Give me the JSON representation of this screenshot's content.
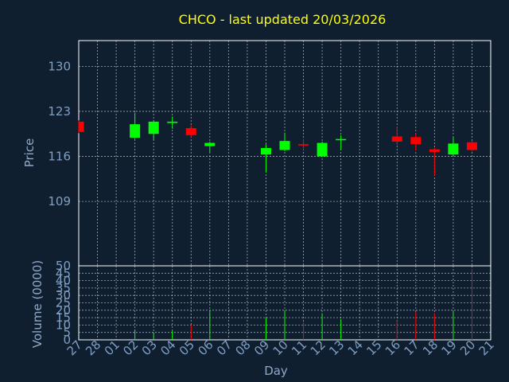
{
  "chart_data": [
    {
      "type": "candlestick",
      "title": "CHCO - last updated 20/03/2026",
      "ylabel": "Price",
      "ylim": [
        99,
        134
      ],
      "yticks": [
        109,
        116,
        123,
        130
      ],
      "grid": true,
      "categories": [
        "27",
        "28",
        "01",
        "02",
        "03",
        "04",
        "05",
        "06",
        "07",
        "08",
        "09",
        "10",
        "11",
        "12",
        "13",
        "14",
        "15",
        "16",
        "17",
        "18",
        "19",
        "20",
        "21"
      ],
      "candles": [
        {
          "day": "27",
          "open": 121.4,
          "close": 119.8,
          "high": 121.6,
          "low": 119.6
        },
        {
          "day": "02",
          "open": 118.9,
          "close": 121.0,
          "high": 122.8,
          "low": 118.7
        },
        {
          "day": "03",
          "open": 119.5,
          "close": 121.4,
          "high": 121.6,
          "low": 118.5
        },
        {
          "day": "04",
          "open": 121.2,
          "close": 121.4,
          "high": 122.2,
          "low": 120.3
        },
        {
          "day": "05",
          "open": 120.4,
          "close": 119.3,
          "high": 120.8,
          "low": 119.0
        },
        {
          "day": "06",
          "open": 117.6,
          "close": 118.1,
          "high": 118.3,
          "low": 116.6
        },
        {
          "day": "09",
          "open": 116.3,
          "close": 117.3,
          "high": 117.9,
          "low": 113.5
        },
        {
          "day": "10",
          "open": 117.0,
          "close": 118.4,
          "high": 119.7,
          "low": 116.8
        },
        {
          "day": "11",
          "open": 117.9,
          "close": 117.7,
          "high": 118.7,
          "low": 117.0
        },
        {
          "day": "12",
          "open": 116.0,
          "close": 118.1,
          "high": 118.3,
          "low": 115.9
        },
        {
          "day": "13",
          "open": 118.6,
          "close": 118.7,
          "high": 119.3,
          "low": 117.0
        },
        {
          "day": "16",
          "open": 119.1,
          "close": 118.3,
          "high": 120.6,
          "low": 117.8
        },
        {
          "day": "17",
          "open": 119.0,
          "close": 117.9,
          "high": 119.6,
          "low": 116.9
        },
        {
          "day": "18",
          "open": 117.1,
          "close": 116.7,
          "high": 117.3,
          "low": 113.0
        },
        {
          "day": "19",
          "open": 116.3,
          "close": 118.0,
          "high": 119.1,
          "low": 116.0
        },
        {
          "day": "20",
          "open": 118.2,
          "close": 117.0,
          "high": 118.4,
          "low": 116.8
        }
      ],
      "up_color": "#00ff00",
      "down_color": "#ff0000"
    },
    {
      "type": "bar",
      "xlabel": "Day",
      "ylabel": "Volume (0000)",
      "ylim": [
        0,
        50
      ],
      "yticks": [
        0,
        5,
        10,
        15,
        20,
        25,
        30,
        35,
        40,
        45,
        50
      ],
      "grid": true,
      "categories": [
        "27",
        "28",
        "01",
        "02",
        "03",
        "04",
        "05",
        "06",
        "07",
        "08",
        "09",
        "10",
        "11",
        "12",
        "13",
        "14",
        "15",
        "16",
        "17",
        "18",
        "19",
        "20",
        "21"
      ],
      "bars": [
        {
          "day": "02",
          "value": 7,
          "direction": "up"
        },
        {
          "day": "03",
          "value": 5,
          "direction": "up"
        },
        {
          "day": "04",
          "value": 6,
          "direction": "up"
        },
        {
          "day": "05",
          "value": 10,
          "direction": "down"
        },
        {
          "day": "06",
          "value": 20,
          "direction": "up"
        },
        {
          "day": "09",
          "value": 15,
          "direction": "up"
        },
        {
          "day": "10",
          "value": 20,
          "direction": "up"
        },
        {
          "day": "11",
          "value": 12,
          "direction": "down"
        },
        {
          "day": "12",
          "value": 18,
          "direction": "up"
        },
        {
          "day": "13",
          "value": 14,
          "direction": "up"
        },
        {
          "day": "16",
          "value": 13,
          "direction": "down"
        },
        {
          "day": "17",
          "value": 19,
          "direction": "down"
        },
        {
          "day": "18",
          "value": 18,
          "direction": "down"
        },
        {
          "day": "19",
          "value": 19,
          "direction": "up"
        },
        {
          "day": "20",
          "value": 48,
          "direction": "down"
        }
      ]
    }
  ],
  "colors": {
    "background": "#0f1f30",
    "title": "#ffff00",
    "axis_text": "#7f9fc4",
    "axis_title": "#8fa9c8",
    "frame": "#ffffff",
    "grid": "#ffffff"
  }
}
